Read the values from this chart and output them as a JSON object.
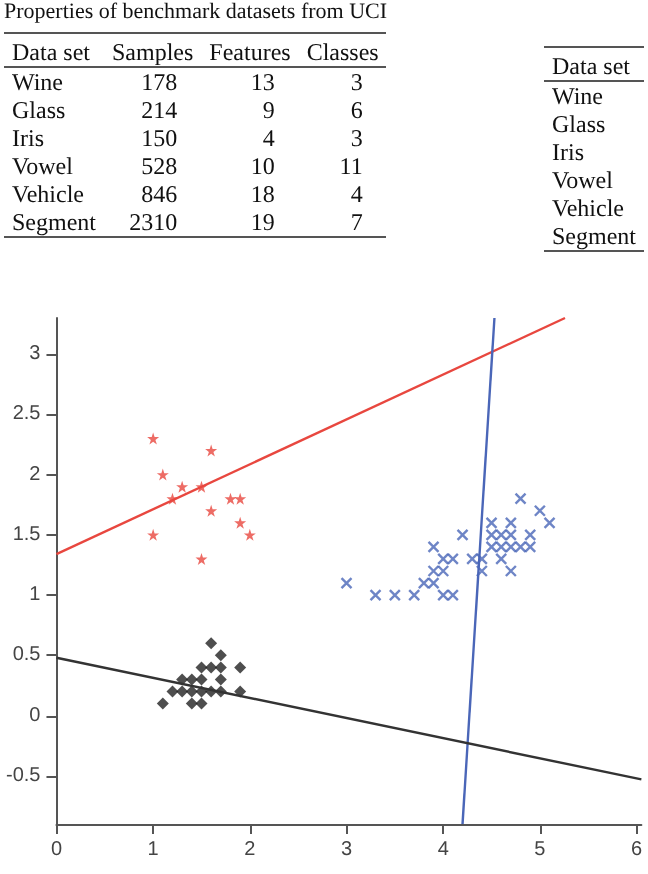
{
  "chart_data": [
    {
      "type": "other",
      "title": "Properties of benchmark datasets from UCI",
      "ylabel": "Data set",
      "categories": [
        "Samples",
        "Features",
        "Classes"
      ],
      "y_categories": [
        "Wine",
        "Glass",
        "Iris",
        "Vowel",
        "Vehicle",
        "Segment"
      ],
      "cell_labels": [
        [
          "178",
          "13",
          "3"
        ],
        [
          "214",
          "9",
          "6"
        ],
        [
          "150",
          "4",
          "3"
        ],
        [
          "528",
          "10",
          "11"
        ],
        [
          "846",
          "18",
          "4"
        ],
        [
          "2310",
          "19",
          "7"
        ]
      ]
    },
    {
      "type": "other",
      "ylabel": "Data set",
      "y_categories": [
        "Wine",
        "Glass",
        "Iris",
        "Vowel",
        "Vehicle",
        "Segment"
      ]
    },
    {
      "type": "scatter",
      "xlim": [
        0,
        6.05
      ],
      "ylim": [
        -0.9,
        3.3
      ],
      "xticks": [
        0,
        1,
        2,
        3,
        4,
        5,
        6
      ],
      "yticks": [
        -0.5,
        0,
        0.5,
        1,
        1.5,
        2,
        2.5,
        3
      ],
      "series": [
        {
          "type": "scatter",
          "marker": "star",
          "color": "#e8473f",
          "x": [
            1.0,
            1.6,
            1.1,
            1.3,
            1.5,
            1.2,
            1.8,
            1.9,
            1.6,
            1.9,
            1.0,
            2.0,
            1.5
          ],
          "values": [
            2.3,
            2.2,
            2.0,
            1.9,
            1.9,
            1.8,
            1.8,
            1.8,
            1.7,
            1.6,
            1.5,
            1.5,
            1.3
          ]
        },
        {
          "type": "scatter",
          "marker": "cross",
          "color": "#4a66b8",
          "x": [
            4.8,
            5.0,
            5.1,
            4.5,
            4.7,
            4.2,
            4.5,
            4.6,
            4.7,
            4.9,
            3.9,
            4.5,
            4.6,
            4.7,
            4.8,
            4.9,
            4.0,
            4.1,
            4.3,
            4.4,
            4.6,
            3.9,
            4.0,
            4.4,
            4.7,
            3.0,
            3.8,
            3.9,
            3.3,
            3.5,
            3.7,
            4.0,
            4.1
          ],
          "values": [
            1.8,
            1.7,
            1.6,
            1.6,
            1.6,
            1.5,
            1.5,
            1.5,
            1.5,
            1.5,
            1.4,
            1.4,
            1.4,
            1.4,
            1.4,
            1.4,
            1.3,
            1.3,
            1.3,
            1.3,
            1.3,
            1.2,
            1.2,
            1.2,
            1.2,
            1.1,
            1.1,
            1.1,
            1.0,
            1.0,
            1.0,
            1.0,
            1.0
          ]
        },
        {
          "type": "scatter",
          "marker": "diamond",
          "color": "#222222",
          "x": [
            1.6,
            1.7,
            1.5,
            1.6,
            1.7,
            1.9,
            1.3,
            1.4,
            1.5,
            1.7,
            1.2,
            1.3,
            1.4,
            1.5,
            1.6,
            1.7,
            1.9,
            1.1,
            1.4,
            1.5
          ],
          "values": [
            0.6,
            0.5,
            0.4,
            0.4,
            0.4,
            0.4,
            0.3,
            0.3,
            0.3,
            0.3,
            0.2,
            0.2,
            0.2,
            0.2,
            0.2,
            0.2,
            0.2,
            0.1,
            0.1,
            0.1
          ]
        },
        {
          "type": "line",
          "color": "#e8473f",
          "x": [
            0,
            5.26
          ],
          "values": [
            1.34,
            3.3
          ]
        },
        {
          "type": "line",
          "color": "#4a66b8",
          "x": [
            4.2,
            4.53
          ],
          "values": [
            -0.9,
            3.3
          ]
        },
        {
          "type": "line",
          "color": "#333333",
          "x": [
            0,
            6.05
          ],
          "values": [
            0.48,
            -0.53
          ]
        }
      ]
    }
  ]
}
